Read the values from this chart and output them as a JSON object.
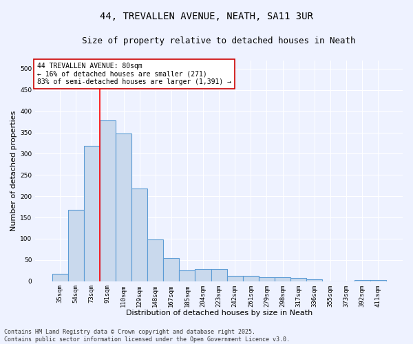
{
  "title_line1": "44, TREVALLEN AVENUE, NEATH, SA11 3UR",
  "title_line2": "Size of property relative to detached houses in Neath",
  "xlabel": "Distribution of detached houses by size in Neath",
  "ylabel": "Number of detached properties",
  "categories": [
    "35sqm",
    "54sqm",
    "73sqm",
    "91sqm",
    "110sqm",
    "129sqm",
    "148sqm",
    "167sqm",
    "185sqm",
    "204sqm",
    "223sqm",
    "242sqm",
    "261sqm",
    "279sqm",
    "298sqm",
    "317sqm",
    "336sqm",
    "355sqm",
    "373sqm",
    "392sqm",
    "411sqm"
  ],
  "values": [
    17,
    168,
    318,
    378,
    348,
    218,
    98,
    54,
    25,
    29,
    29,
    13,
    13,
    10,
    10,
    7,
    5,
    0,
    0,
    2,
    2
  ],
  "bar_color": "#c9d9ed",
  "bar_edge_color": "#5b9bd5",
  "vline_color": "#ff0000",
  "vline_x_index": 2,
  "annotation_text": "44 TREVALLEN AVENUE: 80sqm\n← 16% of detached houses are smaller (271)\n83% of semi-detached houses are larger (1,391) →",
  "annotation_box_color": "#ffffff",
  "annotation_box_edge": "#cc0000",
  "footer_line1": "Contains HM Land Registry data © Crown copyright and database right 2025.",
  "footer_line2": "Contains public sector information licensed under the Open Government Licence v3.0.",
  "ylim": [
    0,
    520
  ],
  "yticks": [
    0,
    50,
    100,
    150,
    200,
    250,
    300,
    350,
    400,
    450,
    500
  ],
  "background_color": "#eef2ff",
  "grid_color": "#ffffff",
  "title_fontsize": 10,
  "subtitle_fontsize": 9,
  "tick_fontsize": 6.5,
  "xlabel_fontsize": 8,
  "ylabel_fontsize": 8,
  "footer_fontsize": 6,
  "annotation_fontsize": 7
}
